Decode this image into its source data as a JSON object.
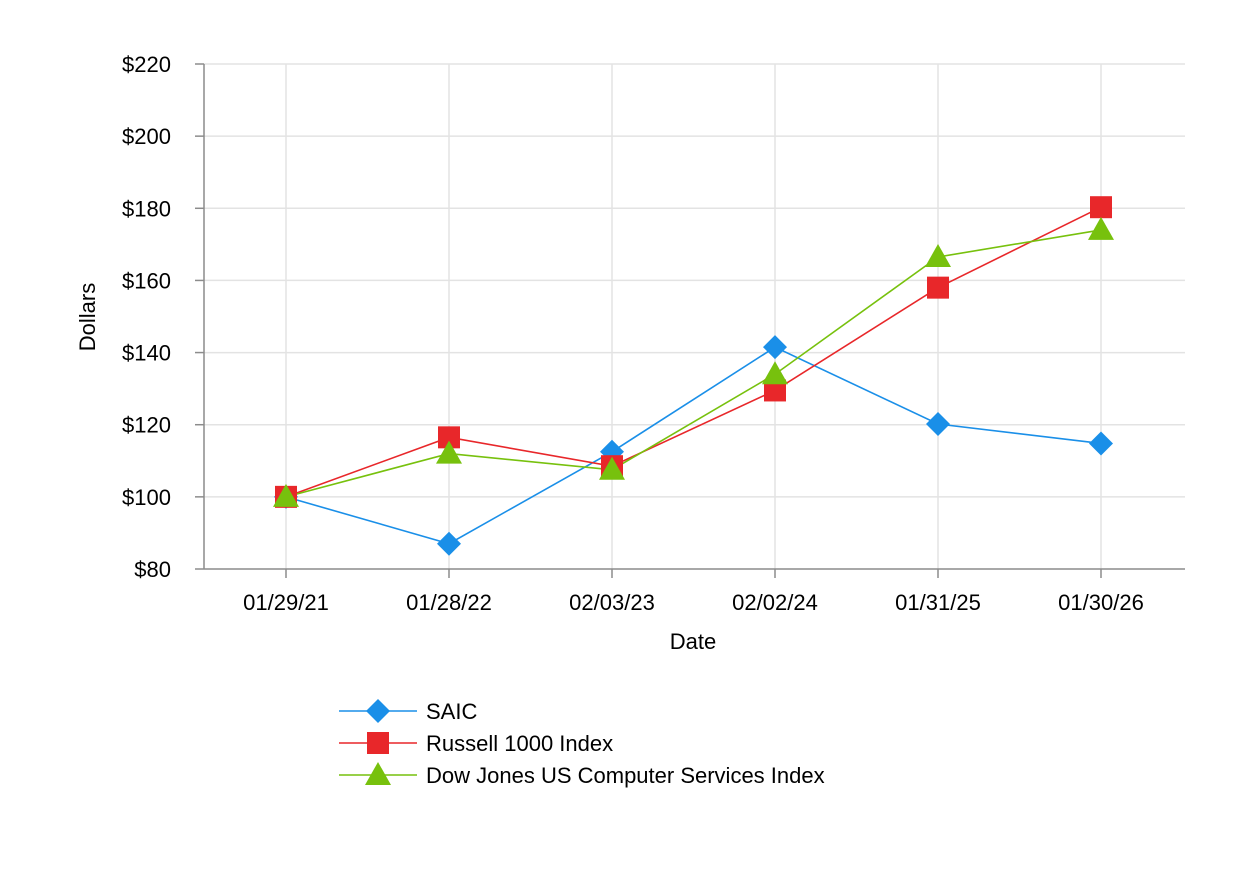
{
  "chart_data": {
    "type": "line",
    "xlabel": "Date",
    "ylabel": "Dollars",
    "categories": [
      "01/29/21",
      "01/28/22",
      "02/03/23",
      "02/02/24",
      "01/31/25",
      "01/30/26"
    ],
    "ylim": [
      80,
      220
    ],
    "yticks": [
      80,
      100,
      120,
      140,
      160,
      180,
      200,
      220
    ],
    "ytick_labels": [
      "$80",
      "$100",
      "$120",
      "$140",
      "$160",
      "$180",
      "$200",
      "$220"
    ],
    "grid": true,
    "legend_position": "bottom",
    "series": [
      {
        "name": "SAIC",
        "marker": "diamond",
        "color": "#1a8fe8",
        "values": [
          100,
          87,
          112.5,
          141.5,
          120.2,
          114.8
        ]
      },
      {
        "name": "Russell 1000 Index",
        "marker": "square",
        "color": "#e8272a",
        "values": [
          100,
          116.5,
          108.5,
          129.5,
          158,
          180.3
        ]
      },
      {
        "name": "Dow Jones US Computer Services Index",
        "marker": "triangle",
        "color": "#77c10d",
        "values": [
          100,
          112,
          107.5,
          134,
          166.5,
          174
        ]
      }
    ]
  }
}
